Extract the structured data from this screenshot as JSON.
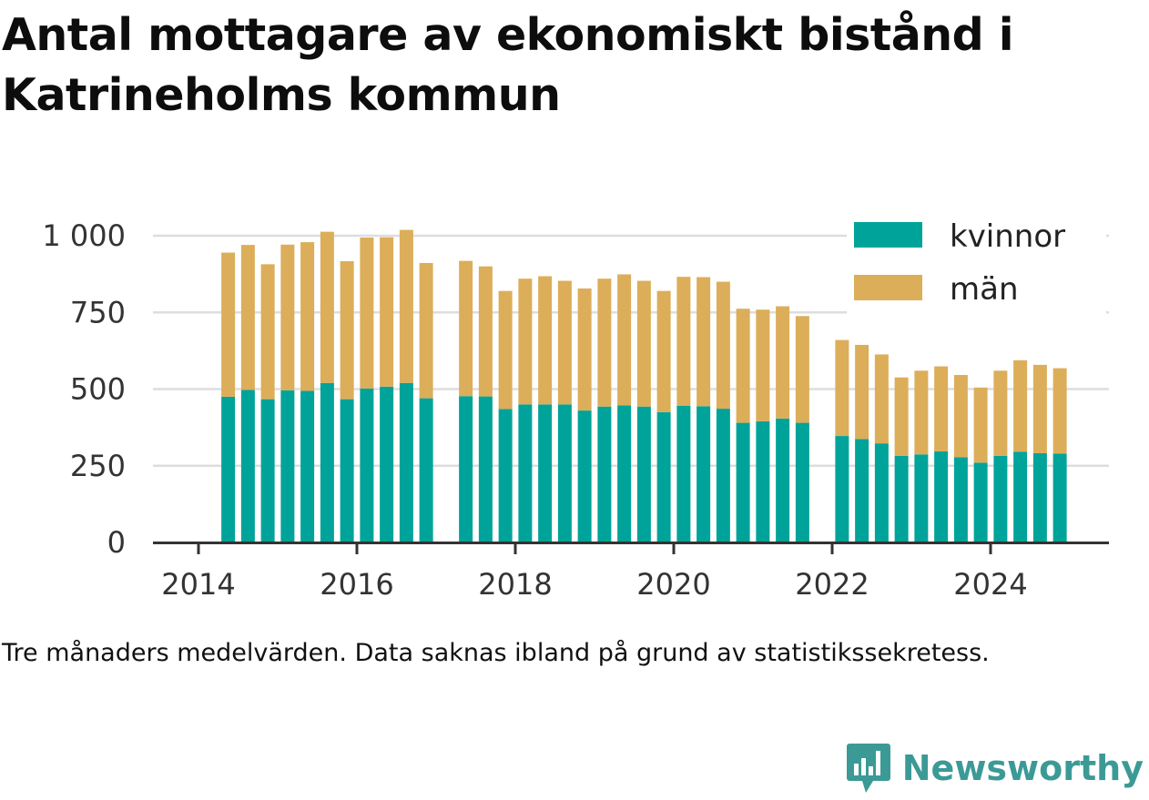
{
  "title": "Antal mottagare av ekonomiskt bistånd i Katrineholms kommun",
  "caption": "Tre månaders medelvärden. Data saknas ibland på grund av statistikssekretess.",
  "brand": {
    "name": "Newsworthy",
    "icon": "newsworthy-logo-icon",
    "color": "#3c9a96"
  },
  "colors": {
    "kvinnor": "#00a39a",
    "man": "#dcae5a",
    "grid": "#dddddd",
    "axis": "#333333"
  },
  "chart_data": {
    "type": "bar",
    "stacked": true,
    "x_ticks": [
      "2014",
      "2016",
      "2018",
      "2020",
      "2022",
      "2024"
    ],
    "y_ticks": [
      "0",
      "250",
      "500",
      "750",
      "1 000"
    ],
    "ylim": [
      0,
      1050
    ],
    "grid": true,
    "legend_position": "top-right",
    "x": [
      "2014-Q2",
      "2014-Q3",
      "2014-Q4",
      "2015-Q1",
      "2015-Q2",
      "2015-Q3",
      "2015-Q4",
      "2016-Q1",
      "2016-Q2",
      "2016-Q3",
      "2016-Q4",
      "2017-Q2",
      "2017-Q3",
      "2017-Q4",
      "2018-Q1",
      "2018-Q2",
      "2018-Q3",
      "2018-Q4",
      "2019-Q1",
      "2019-Q2",
      "2019-Q3",
      "2019-Q4",
      "2020-Q1",
      "2020-Q2",
      "2020-Q3",
      "2020-Q4",
      "2021-Q1",
      "2021-Q2",
      "2021-Q3",
      "2022-Q1",
      "2022-Q2",
      "2022-Q3",
      "2022-Q4",
      "2023-Q1",
      "2023-Q2",
      "2023-Q3",
      "2023-Q4",
      "2024-Q1",
      "2024-Q2",
      "2024-Q3",
      "2024-Q4"
    ],
    "series": [
      {
        "name": "kvinnor",
        "values": [
          475,
          497,
          467,
          496,
          494,
          520,
          467,
          502,
          508,
          520,
          470,
          477,
          476,
          435,
          450,
          450,
          450,
          430,
          443,
          447,
          443,
          425,
          446,
          444,
          436,
          390,
          395,
          404,
          390,
          347,
          337,
          323,
          282,
          287,
          297,
          278,
          260,
          282,
          296,
          291,
          290
        ]
      },
      {
        "name": "män",
        "values": [
          470,
          473,
          440,
          475,
          485,
          493,
          450,
          492,
          487,
          499,
          441,
          441,
          424,
          385,
          410,
          418,
          403,
          398,
          417,
          427,
          410,
          395,
          420,
          421,
          414,
          372,
          364,
          366,
          348,
          313,
          307,
          290,
          256,
          273,
          277,
          268,
          245,
          278,
          298,
          288,
          278
        ]
      }
    ]
  }
}
